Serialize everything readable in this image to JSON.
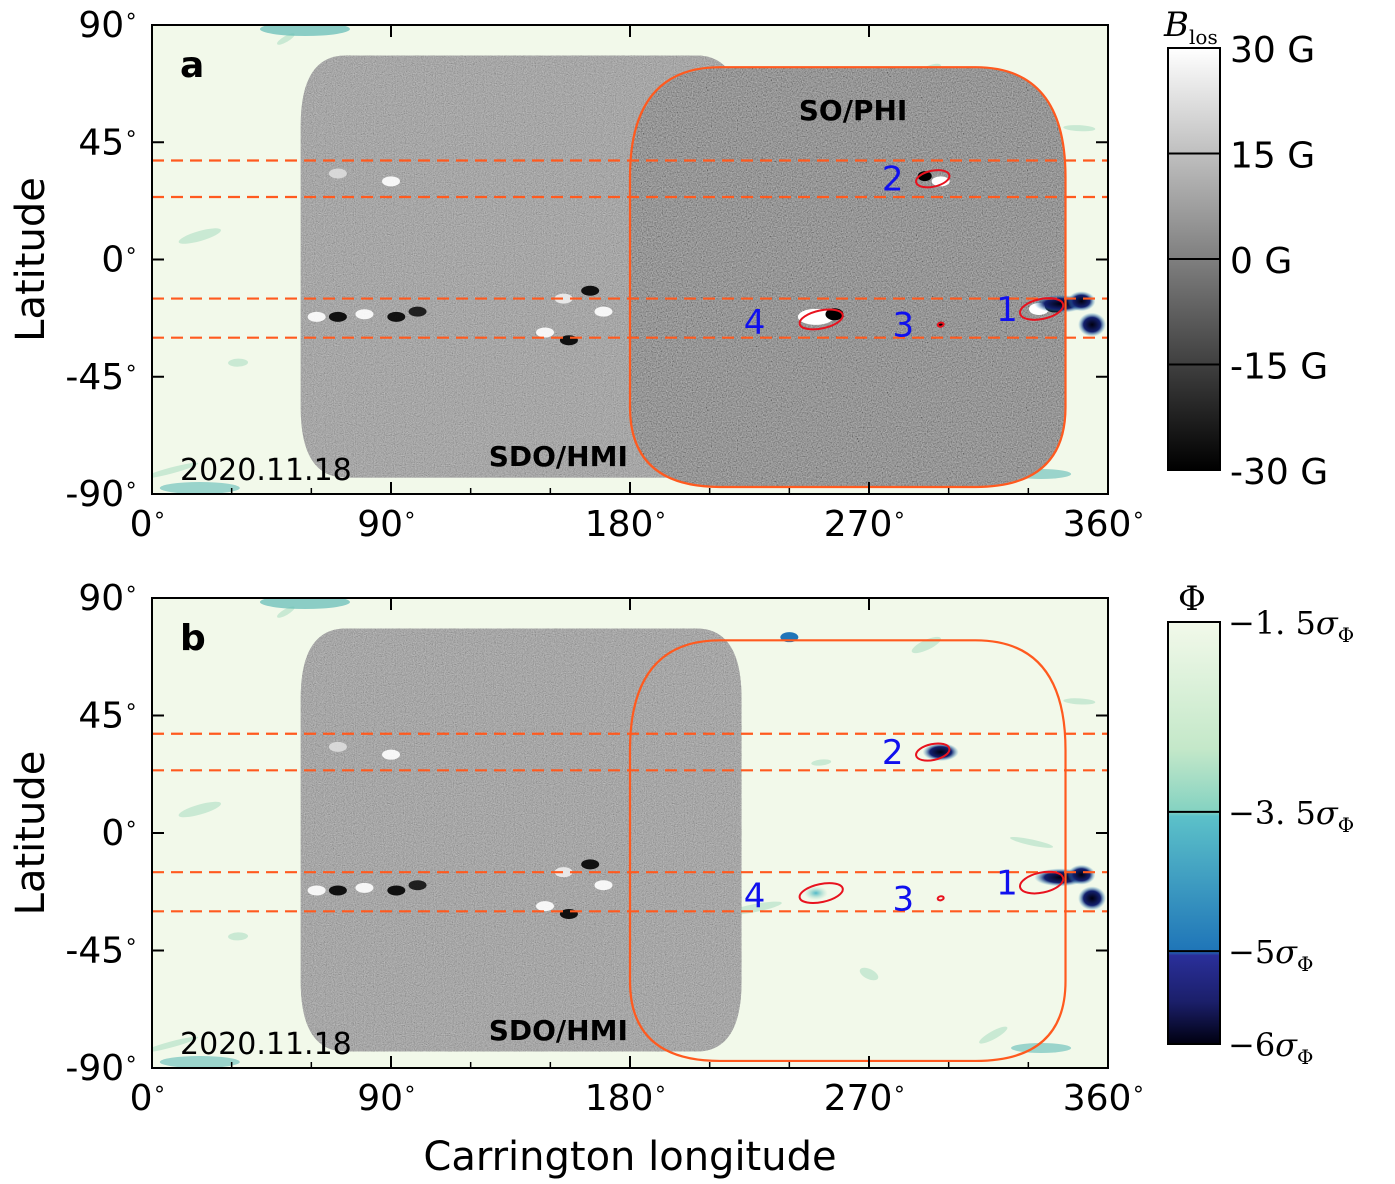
{
  "chart_data": [
    {
      "type": "heatmap",
      "panel_letter": "a",
      "date": "2020.11.18",
      "instrument_labels": [
        "SDO/HMI",
        "SO/PHI"
      ],
      "xlabel": "",
      "ylabel": "Latitude",
      "xlim": [
        0,
        360
      ],
      "ylim": [
        -90,
        90
      ],
      "x_ticks": [
        0,
        90,
        180,
        270,
        360
      ],
      "y_ticks": [
        90,
        45,
        0,
        -45,
        -90
      ],
      "degree_symbol": "∘",
      "latitude_band_lines": [
        38,
        24,
        -15,
        -30
      ],
      "regions": [
        {
          "label": "1",
          "lon": 337,
          "lat": -19
        },
        {
          "label": "2",
          "lon": 293,
          "lat": 31
        },
        {
          "label": "3",
          "lon": 296,
          "lat": -25
        },
        {
          "label": "4",
          "lon": 245,
          "lat": -24
        }
      ],
      "colorbar": {
        "title_main": "B",
        "title_sub": "los",
        "tick_labels": [
          "30 G",
          "15 G",
          "0 G",
          "-15 G",
          "-30 G"
        ],
        "range": [
          -30,
          30
        ]
      }
    },
    {
      "type": "heatmap",
      "panel_letter": "b",
      "date": "2020.11.18",
      "instrument_labels": [
        "SDO/HMI"
      ],
      "xlabel": "Carrington longitude",
      "ylabel": "Latitude",
      "xlim": [
        0,
        360
      ],
      "ylim": [
        -90,
        90
      ],
      "x_ticks": [
        0,
        90,
        180,
        270,
        360
      ],
      "y_ticks": [
        90,
        45,
        0,
        -45,
        -90
      ],
      "degree_symbol": "∘",
      "latitude_band_lines": [
        38,
        24,
        -15,
        -30
      ],
      "regions": [
        {
          "label": "1",
          "lon": 337,
          "lat": -19
        },
        {
          "label": "2",
          "lon": 293,
          "lat": 31
        },
        {
          "label": "3",
          "lon": 296,
          "lat": -25
        },
        {
          "label": "4",
          "lon": 245,
          "lat": -24
        }
      ],
      "colorbar": {
        "title_main": "Φ",
        "tick_labels": [
          {
            "coef": "−1. 5",
            "sym": "σ",
            "sub": "Φ"
          },
          {
            "coef": "−3. 5",
            "sym": "σ",
            "sub": "Φ"
          },
          {
            "coef": "−5",
            "sym": "σ",
            "sub": "Φ"
          },
          {
            "coef": "−6",
            "sym": "σ",
            "sub": "Φ"
          }
        ],
        "colors": [
          "#000010",
          "#1b2f8f",
          "#2f86c6",
          "#60c2c6",
          "#a8dcc0",
          "#f2f9ea"
        ]
      }
    }
  ],
  "colors": {
    "background_map": "#f2f9ea",
    "dashed_lines": "#ff5a1f",
    "so_phi_outline": "#ff5a1f",
    "region_contours": "#e8121e",
    "region_numbers": "#1010ee",
    "hmi_disk": "#8a8a8a",
    "phi_disk": "#6f6f6f"
  }
}
